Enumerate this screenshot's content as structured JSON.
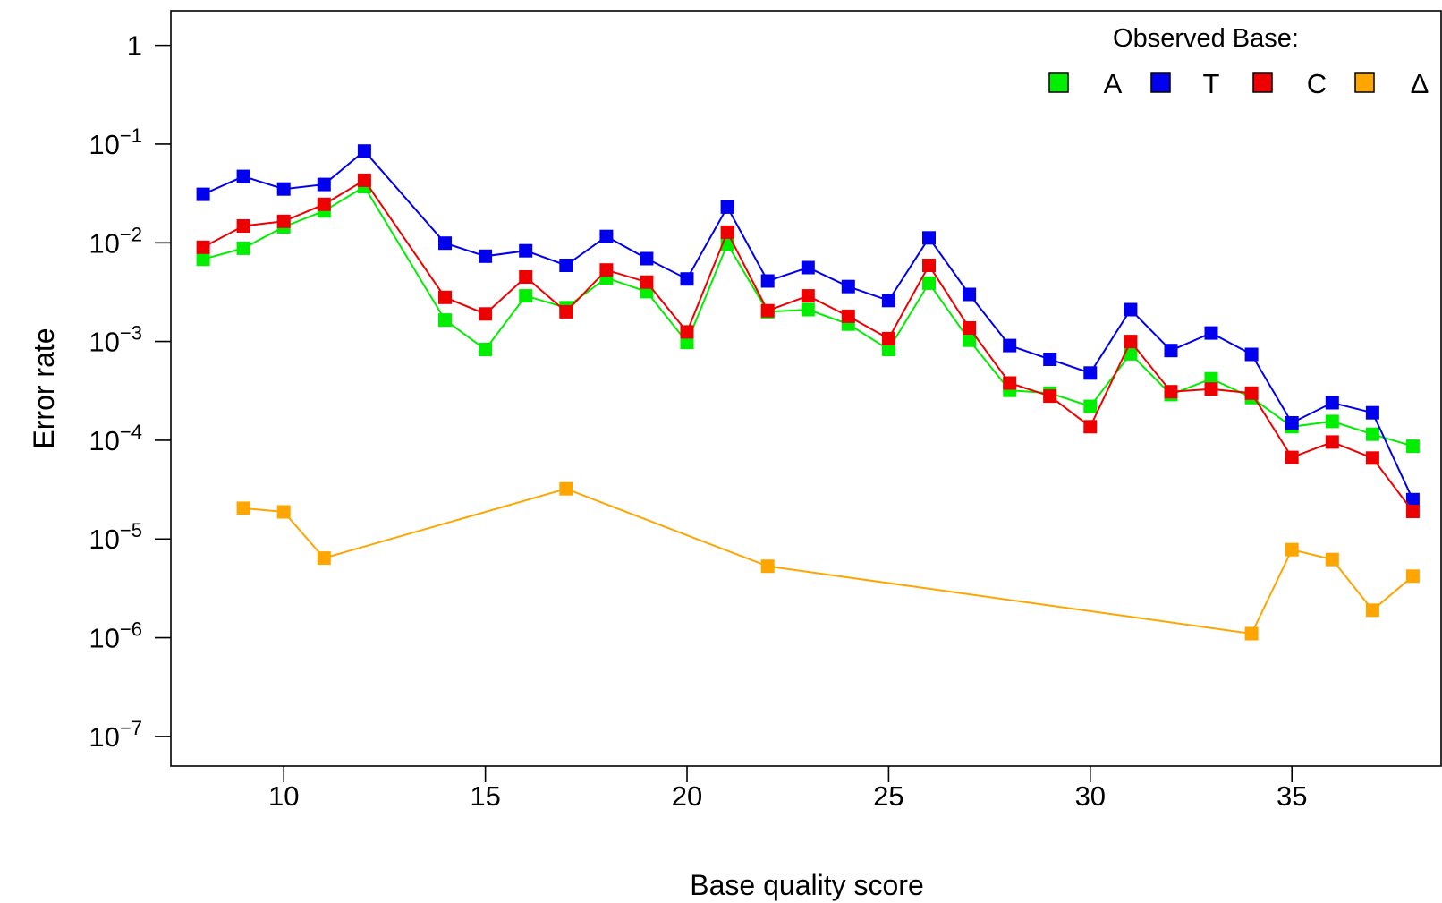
{
  "chart_data": {
    "type": "line",
    "title": "",
    "xlabel": "Base quality score",
    "ylabel": "Error rate",
    "xlim": [
      7.2,
      38.7
    ],
    "ylim_log10": [
      -7.3,
      0.35
    ],
    "y_scale": "log",
    "grid": false,
    "legend_title": "Observed Base:",
    "legend_position": "top-right",
    "x_ticks": [
      10,
      15,
      20,
      25,
      30,
      35
    ],
    "x_tick_labels": [
      "10",
      "15",
      "20",
      "25",
      "30",
      "35"
    ],
    "y_ticks": [
      {
        "exp": 0,
        "label": "1",
        "sup": ""
      },
      {
        "exp": -1,
        "label": "10",
        "sup": "−1"
      },
      {
        "exp": -2,
        "label": "10",
        "sup": "−2"
      },
      {
        "exp": -3,
        "label": "10",
        "sup": "−3"
      },
      {
        "exp": -4,
        "label": "10",
        "sup": "−4"
      },
      {
        "exp": -5,
        "label": "10",
        "sup": "−5"
      },
      {
        "exp": -6,
        "label": "10",
        "sup": "−6"
      },
      {
        "exp": -7,
        "label": "10",
        "sup": "−7"
      }
    ],
    "series": [
      {
        "name": "A",
        "color": "#00ee00",
        "x": [
          8,
          9,
          10,
          11,
          12,
          14,
          15,
          16,
          17,
          18,
          19,
          20,
          21,
          22,
          23,
          24,
          25,
          26,
          27,
          28,
          29,
          30,
          31,
          32,
          33,
          34,
          35,
          36,
          37,
          38
        ],
        "y": [
          0.0068,
          0.0088,
          0.0145,
          0.021,
          0.037,
          0.00165,
          0.00083,
          0.0029,
          0.0022,
          0.0044,
          0.0032,
          0.00098,
          0.0097,
          0.002,
          0.0021,
          0.0015,
          0.00083,
          0.0039,
          0.00103,
          0.00032,
          0.0003,
          0.00022,
          0.00075,
          0.00029,
          0.00042,
          0.00027,
          0.000137,
          0.000155,
          0.000115,
          8.7e-05
        ]
      },
      {
        "name": "T",
        "color": "#0000ee",
        "x": [
          8,
          9,
          10,
          11,
          12,
          14,
          15,
          16,
          17,
          18,
          19,
          20,
          21,
          22,
          23,
          24,
          25,
          26,
          27,
          28,
          29,
          30,
          31,
          32,
          33,
          34,
          35,
          36,
          37,
          38
        ],
        "y": [
          0.031,
          0.047,
          0.035,
          0.039,
          0.085,
          0.0099,
          0.0073,
          0.0083,
          0.0059,
          0.0116,
          0.0069,
          0.0043,
          0.023,
          0.0041,
          0.0056,
          0.0036,
          0.0026,
          0.0112,
          0.003,
          0.00091,
          0.00066,
          0.00048,
          0.0021,
          0.00081,
          0.00122,
          0.00074,
          0.00015,
          0.00024,
          0.00019,
          2.5e-05
        ]
      },
      {
        "name": "C",
        "color": "#ee0000",
        "x": [
          8,
          9,
          10,
          11,
          12,
          14,
          15,
          16,
          17,
          18,
          19,
          20,
          21,
          22,
          23,
          24,
          25,
          26,
          27,
          28,
          29,
          30,
          31,
          32,
          33,
          34,
          35,
          36,
          37,
          38
        ],
        "y": [
          0.009,
          0.0148,
          0.0165,
          0.0245,
          0.043,
          0.0028,
          0.0019,
          0.0045,
          0.002,
          0.0053,
          0.004,
          0.00125,
          0.0128,
          0.00205,
          0.0029,
          0.0018,
          0.00107,
          0.0059,
          0.00137,
          0.00038,
          0.00028,
          0.000137,
          0.001,
          0.00031,
          0.00033,
          0.0003,
          6.7e-05,
          9.6e-05,
          6.6e-05,
          1.9e-05
        ]
      },
      {
        "name": "Δ",
        "color": "#ffa500",
        "x": [
          9,
          10,
          11,
          17,
          22,
          34,
          35,
          36,
          37,
          38
        ],
        "y": [
          2.05e-05,
          1.88e-05,
          6.4e-06,
          3.22e-05,
          5.3e-06,
          1.1e-06,
          7.8e-06,
          6.2e-06,
          1.9e-06,
          4.2e-06
        ]
      }
    ]
  }
}
